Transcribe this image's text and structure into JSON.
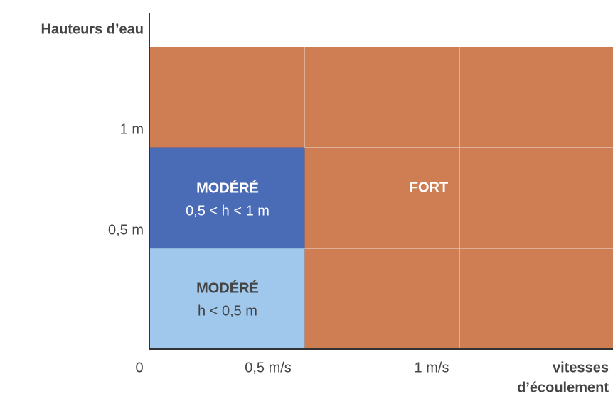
{
  "y_axis": {
    "title": "Hauteurs d’eau",
    "ticks": [
      "1 m",
      "0,5 m"
    ]
  },
  "x_axis": {
    "title": [
      "vitesses",
      "d’écoulement"
    ],
    "ticks": [
      "0",
      "0,5 m/s",
      "1 m/s"
    ]
  },
  "zones": [
    {
      "label": "MODÉRÉ",
      "detail": "0,5 < h < 1 m"
    },
    {
      "label": "MODÉRÉ",
      "detail": "h < 0,5 m"
    },
    {
      "label": "FORT"
    }
  ]
}
